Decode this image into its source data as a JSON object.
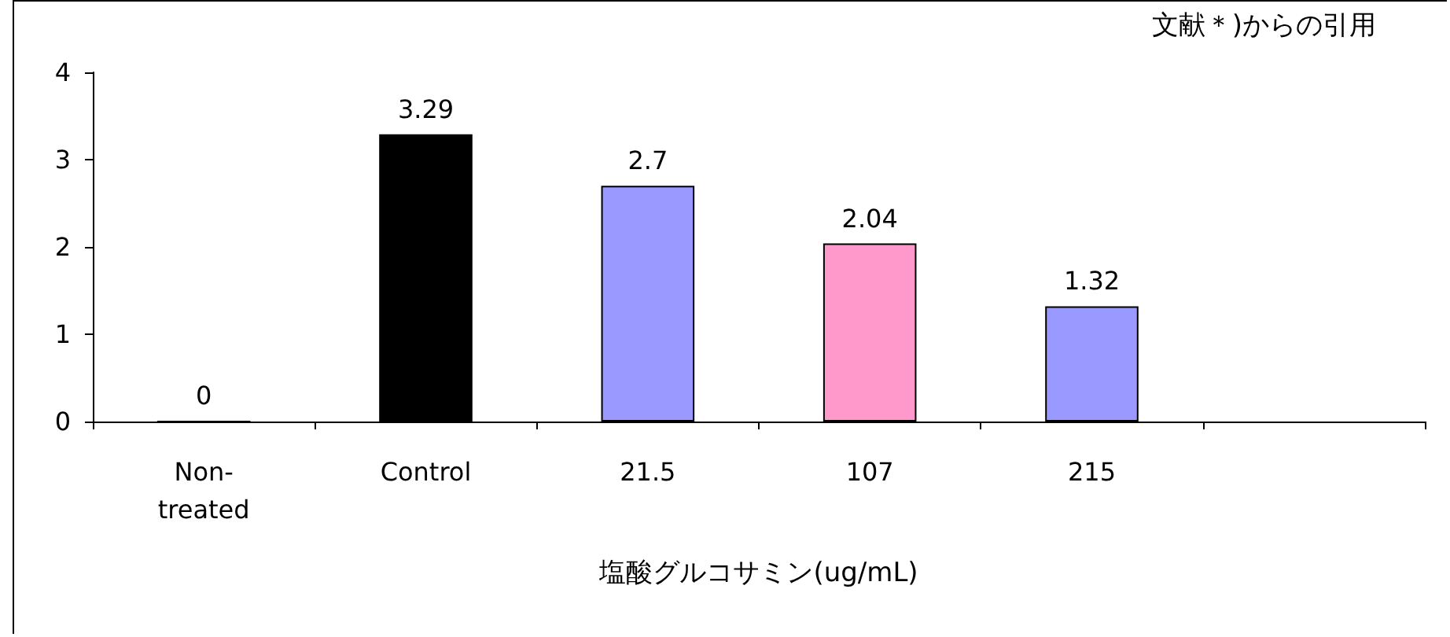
{
  "chart_data": {
    "type": "bar",
    "categories": [
      "Non-treated",
      "Control",
      "21.5",
      "107",
      "215",
      null
    ],
    "values": [
      0,
      3.29,
      2.7,
      2.04,
      1.32,
      null
    ],
    "colors": [
      "#9999ff",
      "#000000",
      "#9999ff",
      "#ff99cc",
      "#9999ff",
      "#9999ff"
    ],
    "xlabel": "塩酸グルコサミン(ug/mL)",
    "annotations": [
      "文献＊)からの引用"
    ],
    "ylim": [
      0,
      4
    ],
    "yticks": [
      0,
      1,
      2,
      3,
      4
    ],
    "data_labels": true,
    "grid": false
  }
}
